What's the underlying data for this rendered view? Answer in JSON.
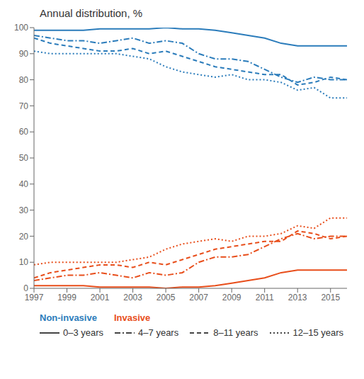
{
  "chart_data": {
    "type": "line",
    "title": "Annual distribution, %",
    "x": [
      1997,
      1998,
      1999,
      2000,
      2001,
      2002,
      2003,
      2004,
      2005,
      2006,
      2007,
      2008,
      2009,
      2010,
      2011,
      2012,
      2013,
      2014,
      2015,
      2016
    ],
    "xlim": [
      1997,
      2016
    ],
    "ylim": [
      0,
      100
    ],
    "xticks": [
      1997,
      1999,
      2001,
      2003,
      2005,
      2007,
      2009,
      2011,
      2013,
      2015
    ],
    "yticks": [
      0,
      10,
      20,
      30,
      40,
      50,
      60,
      70,
      80,
      90,
      100
    ],
    "grid": false,
    "series": [
      {
        "name": "0–3 years",
        "group": "Non-invasive",
        "color": "#2B7CBB",
        "line_style": "solid",
        "values": [
          99,
          99,
          99,
          99,
          99.5,
          99.5,
          99.5,
          99.5,
          100,
          99.5,
          99.5,
          99,
          98,
          97,
          96,
          94,
          93,
          93,
          93,
          93
        ]
      },
      {
        "name": "4–7 years",
        "group": "Non-invasive",
        "color": "#2B7CBB",
        "line_style": "dashdot",
        "values": [
          97,
          96,
          95,
          95,
          94,
          95,
          96,
          94,
          95,
          94,
          90,
          88,
          88,
          87,
          84,
          81,
          79,
          81,
          80,
          80
        ]
      },
      {
        "name": "8–11 years",
        "group": "Non-invasive",
        "color": "#2B7CBB",
        "line_style": "dashed",
        "values": [
          96,
          94,
          93,
          92,
          91,
          91,
          92,
          90,
          91,
          89,
          87,
          85,
          84,
          83,
          82,
          82,
          78,
          79,
          81,
          80
        ]
      },
      {
        "name": "12–15 years",
        "group": "Non-invasive",
        "color": "#2B7CBB",
        "line_style": "dotted",
        "values": [
          91,
          90,
          90,
          90,
          90,
          90,
          89,
          88,
          85,
          83,
          82,
          81,
          82,
          80,
          80,
          79,
          76,
          77,
          73,
          73
        ]
      },
      {
        "name": "0–3 years",
        "group": "Invasive",
        "color": "#E84E1B",
        "line_style": "solid",
        "values": [
          1,
          1,
          1,
          1,
          0.5,
          0.5,
          0.5,
          0.5,
          0,
          0.5,
          0.5,
          1,
          2,
          3,
          4,
          6,
          7,
          7,
          7,
          7
        ]
      },
      {
        "name": "4–7 years",
        "group": "Invasive",
        "color": "#E84E1B",
        "line_style": "dashdot",
        "values": [
          3,
          4,
          5,
          5,
          6,
          5,
          4,
          6,
          5,
          6,
          10,
          12,
          12,
          13,
          16,
          19,
          21,
          19,
          20,
          20
        ]
      },
      {
        "name": "8–11 years",
        "group": "Invasive",
        "color": "#E84E1B",
        "line_style": "dashed",
        "values": [
          4,
          6,
          7,
          8,
          9,
          9,
          8,
          10,
          9,
          11,
          13,
          15,
          16,
          17,
          18,
          18,
          22,
          21,
          19,
          20
        ]
      },
      {
        "name": "12–15 years",
        "group": "Invasive",
        "color": "#E84E1B",
        "line_style": "dotted",
        "values": [
          9,
          10,
          10,
          10,
          10,
          10,
          11,
          12,
          15,
          17,
          18,
          19,
          18,
          20,
          20,
          21,
          24,
          23,
          27,
          27
        ]
      }
    ]
  }
}
